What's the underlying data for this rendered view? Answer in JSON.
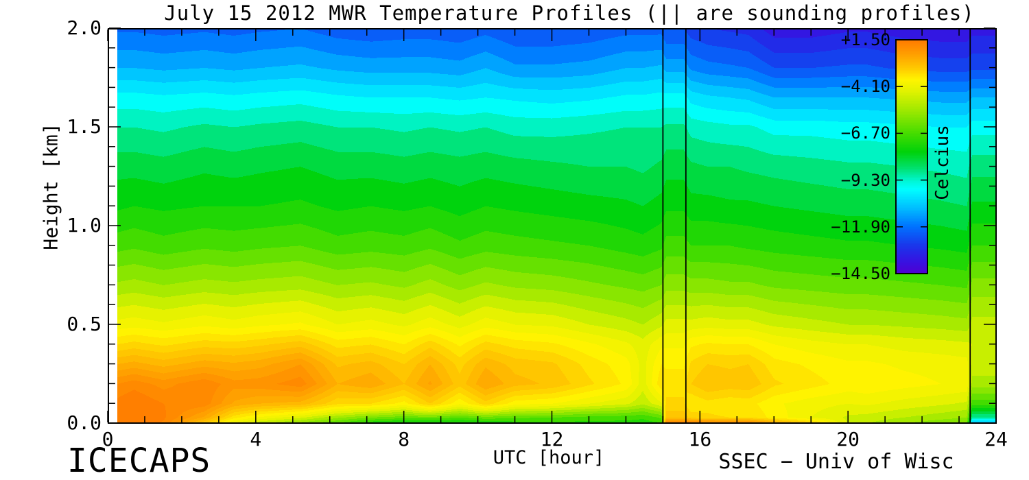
{
  "title": "July 15 2012 MWR Temperature Profiles (|| are sounding profiles)",
  "branding": {
    "bottom_left": "ICECAPS",
    "bottom_right": "SSEC − Univ of Wisc"
  },
  "chart_data": {
    "type": "heatmap",
    "title": "July 15 2012 MWR Temperature Profiles (|| are sounding profiles)",
    "xlabel": "UTC [hour]",
    "ylabel": "Height [km]",
    "xlim": [
      0,
      24
    ],
    "ylim": [
      0,
      2
    ],
    "grid_lines": "off",
    "x_tick_values": [
      0,
      4,
      8,
      12,
      16,
      20,
      24
    ],
    "x_tick_labels": [
      "0",
      "4",
      "8",
      "12",
      "16",
      "20",
      "24"
    ],
    "x_minor_step_hours": 1,
    "y_tick_values": [
      2.0,
      1.5,
      1.0,
      0.5,
      0.0
    ],
    "y_tick_labels": [
      "2.0",
      "1.5",
      "1.0",
      "0.5",
      "0.0"
    ],
    "y_minor_step_km": 0.1,
    "colorbar": {
      "title": "Celcius",
      "tick_labels": [
        "+1.50",
        "−4.10",
        "−6.70",
        "−9.30",
        "−11.90",
        "−14.50"
      ],
      "tick_values": [
        1.5,
        -4.1,
        -6.7,
        -9.3,
        -11.9,
        -14.5
      ],
      "position": "upper-right-inset"
    },
    "colormap": {
      "anchors": [
        {
          "p": 0.0,
          "color": "#FF7A00"
        },
        {
          "p": 0.06,
          "color": "#FF9E00"
        },
        {
          "p": 0.12,
          "color": "#FFC800"
        },
        {
          "p": 0.17,
          "color": "#FFF400"
        },
        {
          "p": 0.22,
          "color": "#E1F200"
        },
        {
          "p": 0.3,
          "color": "#A0E900"
        },
        {
          "p": 0.4,
          "color": "#46DC00"
        },
        {
          "p": 0.48,
          "color": "#00D20A"
        },
        {
          "p": 0.55,
          "color": "#00E16E"
        },
        {
          "p": 0.61,
          "color": "#00F8DC"
        },
        {
          "p": 0.64,
          "color": "#00FFFF"
        },
        {
          "p": 0.72,
          "color": "#00BEFF"
        },
        {
          "p": 0.8,
          "color": "#0073FF"
        },
        {
          "p": 0.88,
          "color": "#1937EB"
        },
        {
          "p": 0.95,
          "color": "#3712E1"
        },
        {
          "p": 1.0,
          "color": "#5000D2"
        }
      ]
    },
    "contour_step_c": 0.5,
    "data_start_hour": 0.25,
    "sounding_line_hours": [
      15.0,
      15.62,
      23.3
    ],
    "grid": {
      "heights_km": [
        0,
        0.03,
        0.1,
        0.2,
        0.3,
        0.4,
        0.5,
        0.7,
        0.9,
        1.1,
        1.3,
        1.5,
        1.65,
        1.8,
        2.0
      ],
      "columns": [
        {
          "hour": 0.25,
          "temps_c": [
            1.2,
            1.4,
            1.2,
            0.5,
            -1.0,
            -2.5,
            -3.8,
            -5.4,
            -6.7,
            -7.6,
            -8.2,
            -9.0,
            -9.8,
            -11.0,
            -12.1
          ]
        },
        {
          "hour": 0.7,
          "temps_c": [
            1.4,
            1.6,
            1.5,
            0.8,
            -0.8,
            -2.3,
            -3.7,
            -5.3,
            -6.6,
            -7.5,
            -8.2,
            -9.0,
            -9.8,
            -11.0,
            -12.1
          ]
        },
        {
          "hour": 1.5,
          "temps_c": [
            0.9,
            1.1,
            1.0,
            0.3,
            -1.2,
            -2.6,
            -3.9,
            -5.5,
            -6.8,
            -7.6,
            -8.3,
            -9.1,
            -9.9,
            -11.1,
            -12.2
          ]
        },
        {
          "hour": 2.6,
          "temps_c": [
            -2.0,
            -0.6,
            0.8,
            0.9,
            -0.7,
            -2.2,
            -3.6,
            -5.3,
            -6.6,
            -7.5,
            -8.1,
            -8.9,
            -9.8,
            -11.0,
            -12.1
          ]
        },
        {
          "hour": 3.4,
          "temps_c": [
            -4.2,
            -2.8,
            -0.6,
            0.2,
            -0.9,
            -2.3,
            -3.8,
            -5.4,
            -6.7,
            -7.5,
            -8.2,
            -9.0,
            -9.9,
            -11.1,
            -12.2
          ]
        },
        {
          "hour": 4.1,
          "temps_c": [
            -5.0,
            -3.6,
            -1.0,
            0.3,
            -0.7,
            -2.1,
            -3.6,
            -5.3,
            -6.6,
            -7.5,
            -8.1,
            -8.9,
            -9.8,
            -11.0,
            -12.1
          ]
        },
        {
          "hour": 5.2,
          "temps_c": [
            -5.8,
            -4.4,
            -1.2,
            0.8,
            0.0,
            -1.7,
            -3.4,
            -5.2,
            -6.5,
            -7.4,
            -8.0,
            -8.8,
            -9.7,
            -10.9,
            -12.0
          ]
        },
        {
          "hour": 6.2,
          "temps_c": [
            -6.6,
            -5.4,
            -2.4,
            -1.0,
            -1.6,
            -2.7,
            -4.0,
            -5.5,
            -6.8,
            -7.6,
            -8.2,
            -9.0,
            -9.9,
            -11.1,
            -12.3
          ]
        },
        {
          "hour": 7.1,
          "temps_c": [
            -7.5,
            -6.0,
            -2.5,
            -0.6,
            -1.3,
            -2.5,
            -3.8,
            -5.4,
            -6.7,
            -7.5,
            -8.2,
            -9.0,
            -10.0,
            -11.2,
            -12.4
          ]
        },
        {
          "hour": 8.0,
          "temps_c": [
            -7.8,
            -6.3,
            -3.2,
            -1.5,
            -2.0,
            -3.0,
            -4.1,
            -5.6,
            -6.8,
            -7.6,
            -8.3,
            -9.1,
            -10.0,
            -11.2,
            -12.3
          ]
        },
        {
          "hour": 8.7,
          "temps_c": [
            -7.8,
            -6.2,
            -2.0,
            -0.4,
            -1.0,
            -2.2,
            -3.7,
            -5.3,
            -6.6,
            -7.5,
            -8.2,
            -9.0,
            -10.0,
            -11.2,
            -12.3
          ]
        },
        {
          "hour": 9.5,
          "temps_c": [
            -7.8,
            -6.5,
            -3.4,
            -1.8,
            -2.2,
            -3.1,
            -4.2,
            -5.7,
            -6.9,
            -7.7,
            -8.3,
            -9.1,
            -10.1,
            -11.3,
            -12.4
          ]
        },
        {
          "hour": 10.2,
          "temps_c": [
            -7.6,
            -6.2,
            -2.2,
            -0.5,
            -1.1,
            -2.3,
            -3.7,
            -5.4,
            -6.7,
            -7.5,
            -8.2,
            -9.0,
            -10.0,
            -11.0,
            -12.2
          ]
        },
        {
          "hour": 11.0,
          "temps_c": [
            -7.3,
            -6.4,
            -3.3,
            -1.3,
            -1.7,
            -2.7,
            -4.0,
            -5.6,
            -6.8,
            -7.6,
            -8.3,
            -9.2,
            -10.1,
            -11.4,
            -12.5
          ]
        },
        {
          "hour": 12.0,
          "temps_c": [
            -7.2,
            -6.5,
            -3.5,
            -1.6,
            -1.9,
            -2.9,
            -4.1,
            -5.7,
            -6.9,
            -7.7,
            -8.4,
            -9.2,
            -10.2,
            -11.4,
            -12.5
          ]
        },
        {
          "hour": 13.0,
          "temps_c": [
            -7.2,
            -6.7,
            -4.0,
            -2.4,
            -2.7,
            -3.4,
            -4.5,
            -5.9,
            -7.0,
            -7.8,
            -8.5,
            -9.1,
            -10.1,
            -11.3,
            -12.4
          ]
        },
        {
          "hour": 14.0,
          "temps_c": [
            -7.2,
            -6.8,
            -4.4,
            -3.1,
            -3.3,
            -3.9,
            -4.8,
            -6.1,
            -7.2,
            -7.9,
            -8.5,
            -9.0,
            -9.9,
            -11.0,
            -12.2
          ]
        },
        {
          "hour": 14.45,
          "temps_c": [
            -7.3,
            -6.9,
            -4.9,
            -4.3,
            -4.2,
            -4.3,
            -5.0,
            -6.2,
            -7.3,
            -8.0,
            -8.6,
            -9.0,
            -9.9,
            -11.0,
            -12.2
          ]
        },
        {
          "hour": 14.95,
          "temps_c": [
            -7.1,
            -6.4,
            -4.1,
            -2.6,
            -3.0,
            -3.6,
            -4.6,
            -6.0,
            -7.1,
            -7.8,
            -8.4,
            -9.0,
            -9.8,
            -10.9,
            -12.2
          ]
        },
        {
          "hour": 15.08,
          "temps_c": [
            1.3,
            -1.6,
            -2.4,
            -2.7,
            -3.1,
            -3.6,
            -4.3,
            -5.7,
            -6.8,
            -7.6,
            -8.2,
            -8.9,
            -9.8,
            -11.2,
            -12.5
          ],
          "sounding": true
        },
        {
          "hour": 15.55,
          "temps_c": [
            1.3,
            -1.6,
            -2.4,
            -2.7,
            -3.1,
            -3.6,
            -4.3,
            -5.7,
            -6.8,
            -7.6,
            -8.2,
            -8.9,
            -9.8,
            -11.2,
            -12.5
          ],
          "sounding": true
        },
        {
          "hour": 15.75,
          "temps_c": [
            1.3,
            -2.2,
            -3.0,
            -2.0,
            -2.4,
            -3.1,
            -4.3,
            -5.8,
            -7.0,
            -7.8,
            -8.4,
            -9.2,
            -10.2,
            -11.6,
            -12.8
          ]
        },
        {
          "hour": 16.2,
          "temps_c": [
            1.2,
            -2.4,
            -2.7,
            -1.5,
            -2.0,
            -2.9,
            -4.2,
            -5.8,
            -7.0,
            -7.8,
            -8.5,
            -9.3,
            -10.4,
            -11.8,
            -13.0
          ]
        },
        {
          "hour": 16.8,
          "temps_c": [
            1.1,
            -2.5,
            -2.9,
            -1.7,
            -2.1,
            -3.0,
            -4.3,
            -5.9,
            -7.0,
            -7.9,
            -8.5,
            -9.4,
            -10.5,
            -11.9,
            -13.1
          ]
        },
        {
          "hour": 17.3,
          "temps_c": [
            1.0,
            -2.5,
            -2.8,
            -1.6,
            -2.0,
            -3.0,
            -4.3,
            -5.9,
            -7.1,
            -7.9,
            -8.6,
            -9.4,
            -10.6,
            -12.0,
            -13.2
          ]
        },
        {
          "hour": 18.0,
          "temps_c": [
            -0.5,
            -3.2,
            -3.4,
            -2.4,
            -2.8,
            -3.5,
            -4.6,
            -6.1,
            -7.2,
            -8.0,
            -8.7,
            -9.7,
            -11.0,
            -12.5,
            -13.8
          ]
        },
        {
          "hour": 19.0,
          "temps_c": [
            -2.0,
            -4.0,
            -3.8,
            -2.8,
            -3.1,
            -3.8,
            -4.8,
            -6.2,
            -7.3,
            -8.1,
            -8.8,
            -9.7,
            -11.0,
            -12.5,
            -13.8
          ]
        },
        {
          "hour": 20.0,
          "temps_c": [
            -4.6,
            -4.6,
            -4.0,
            -3.2,
            -3.4,
            -4.0,
            -5.0,
            -6.3,
            -7.4,
            -8.2,
            -8.9,
            -9.8,
            -11.0,
            -12.4,
            -13.6
          ]
        },
        {
          "hour": 20.5,
          "temps_c": [
            -5.0,
            -4.7,
            -3.9,
            -3.1,
            -3.4,
            -4.0,
            -5.0,
            -6.3,
            -7.4,
            -8.2,
            -8.9,
            -9.8,
            -11.0,
            -12.4,
            -13.6
          ]
        },
        {
          "hour": 21.5,
          "temps_c": [
            -5.5,
            -5.0,
            -4.2,
            -3.3,
            -3.6,
            -4.2,
            -5.1,
            -6.4,
            -7.5,
            -8.3,
            -9.0,
            -9.9,
            -11.1,
            -12.6,
            -13.8
          ]
        },
        {
          "hour": 22.5,
          "temps_c": [
            -5.9,
            -5.3,
            -4.4,
            -3.5,
            -3.7,
            -4.3,
            -5.2,
            -6.5,
            -7.6,
            -8.4,
            -9.1,
            -10.0,
            -11.2,
            -12.7,
            -13.9
          ]
        },
        {
          "hour": 23.2,
          "temps_c": [
            -6.1,
            -5.5,
            -4.6,
            -3.6,
            -3.8,
            -4.4,
            -5.3,
            -6.6,
            -7.7,
            -8.5,
            -9.2,
            -10.0,
            -11.2,
            -12.7,
            -13.9
          ]
        },
        {
          "hour": 23.35,
          "temps_c": [
            -11.2,
            -9.0,
            -6.8,
            -5.2,
            -4.7,
            -4.5,
            -4.8,
            -5.8,
            -7.0,
            -7.9,
            -8.7,
            -9.7,
            -11.0,
            -12.6,
            -13.7
          ],
          "sounding": true
        },
        {
          "hour": 24.0,
          "temps_c": [
            -11.2,
            -9.0,
            -6.8,
            -5.2,
            -4.7,
            -4.5,
            -4.8,
            -5.8,
            -7.0,
            -7.9,
            -8.7,
            -9.7,
            -11.0,
            -12.6,
            -13.7
          ],
          "sounding": true
        }
      ]
    }
  },
  "colors": {
    "background": "#FFFFFF",
    "axis": "#000000",
    "text": "#000000"
  }
}
